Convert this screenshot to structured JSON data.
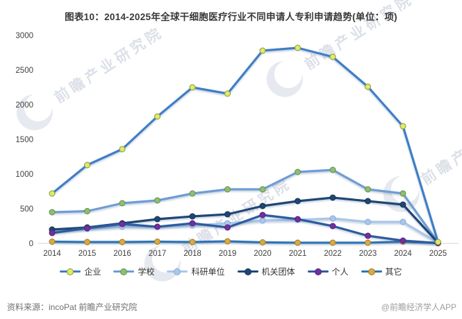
{
  "title": "图表10：2014-2025年全球干细胞医疗行业不同申请人专利申请趋势(单位：项)",
  "chart_data": {
    "type": "line",
    "x": [
      2014,
      2015,
      2016,
      2017,
      2018,
      2019,
      2020,
      2021,
      2022,
      2023,
      2024,
      2025
    ],
    "series": [
      {
        "key": "enterprise",
        "name": "企业",
        "line_color": "#3e7ec7",
        "marker_color": "#dfe96b",
        "marker_edge": "#8a972f",
        "values": [
          720,
          1130,
          1360,
          1830,
          2250,
          2160,
          2780,
          2820,
          2690,
          2260,
          1690,
          20
        ]
      },
      {
        "key": "school",
        "name": "学校",
        "line_color": "#6e9dd4",
        "marker_color": "#8fbe70",
        "marker_edge": "#5f8f49",
        "values": [
          450,
          465,
          580,
          620,
          720,
          780,
          780,
          1030,
          1060,
          780,
          720,
          15
        ]
      },
      {
        "key": "research-institute",
        "name": "科研单位",
        "line_color": "#a9c7ea",
        "marker_color": "#a9c7ea",
        "marker_edge": "#84a9d9",
        "values": [
          180,
          210,
          240,
          240,
          260,
          290,
          330,
          340,
          360,
          310,
          310,
          10
        ]
      },
      {
        "key": "government-organization",
        "name": "机关团体",
        "line_color": "#1e4775",
        "marker_color": "#1e4775",
        "marker_edge": "#142f50",
        "values": [
          200,
          230,
          290,
          350,
          390,
          420,
          540,
          610,
          660,
          610,
          560,
          10
        ]
      },
      {
        "key": "individual",
        "name": "个人",
        "line_color": "#2c5c9e",
        "marker_color": "#7030a0",
        "marker_edge": "#54217a",
        "values": [
          150,
          220,
          280,
          240,
          290,
          230,
          410,
          350,
          250,
          110,
          40,
          5
        ]
      },
      {
        "key": "other",
        "name": "其它",
        "line_color": "#2e75b6",
        "marker_color": "#d9a943",
        "marker_edge": "#a37a20",
        "values": [
          25,
          20,
          20,
          25,
          20,
          30,
          15,
          10,
          10,
          10,
          25,
          5
        ]
      }
    ],
    "ylim": [
      0,
      3000
    ],
    "yticks": [
      0,
      500,
      1000,
      1500,
      2000,
      2500,
      3000
    ],
    "grid": false,
    "legend_position": "bottom",
    "axis_line_color": "#d6d6d6"
  },
  "footer": {
    "source": "资料来源：incoPat 前瞻产业研究院",
    "credit": "@前瞻经济学人APP"
  },
  "watermark": {
    "text": "前瞻产业研究院"
  }
}
